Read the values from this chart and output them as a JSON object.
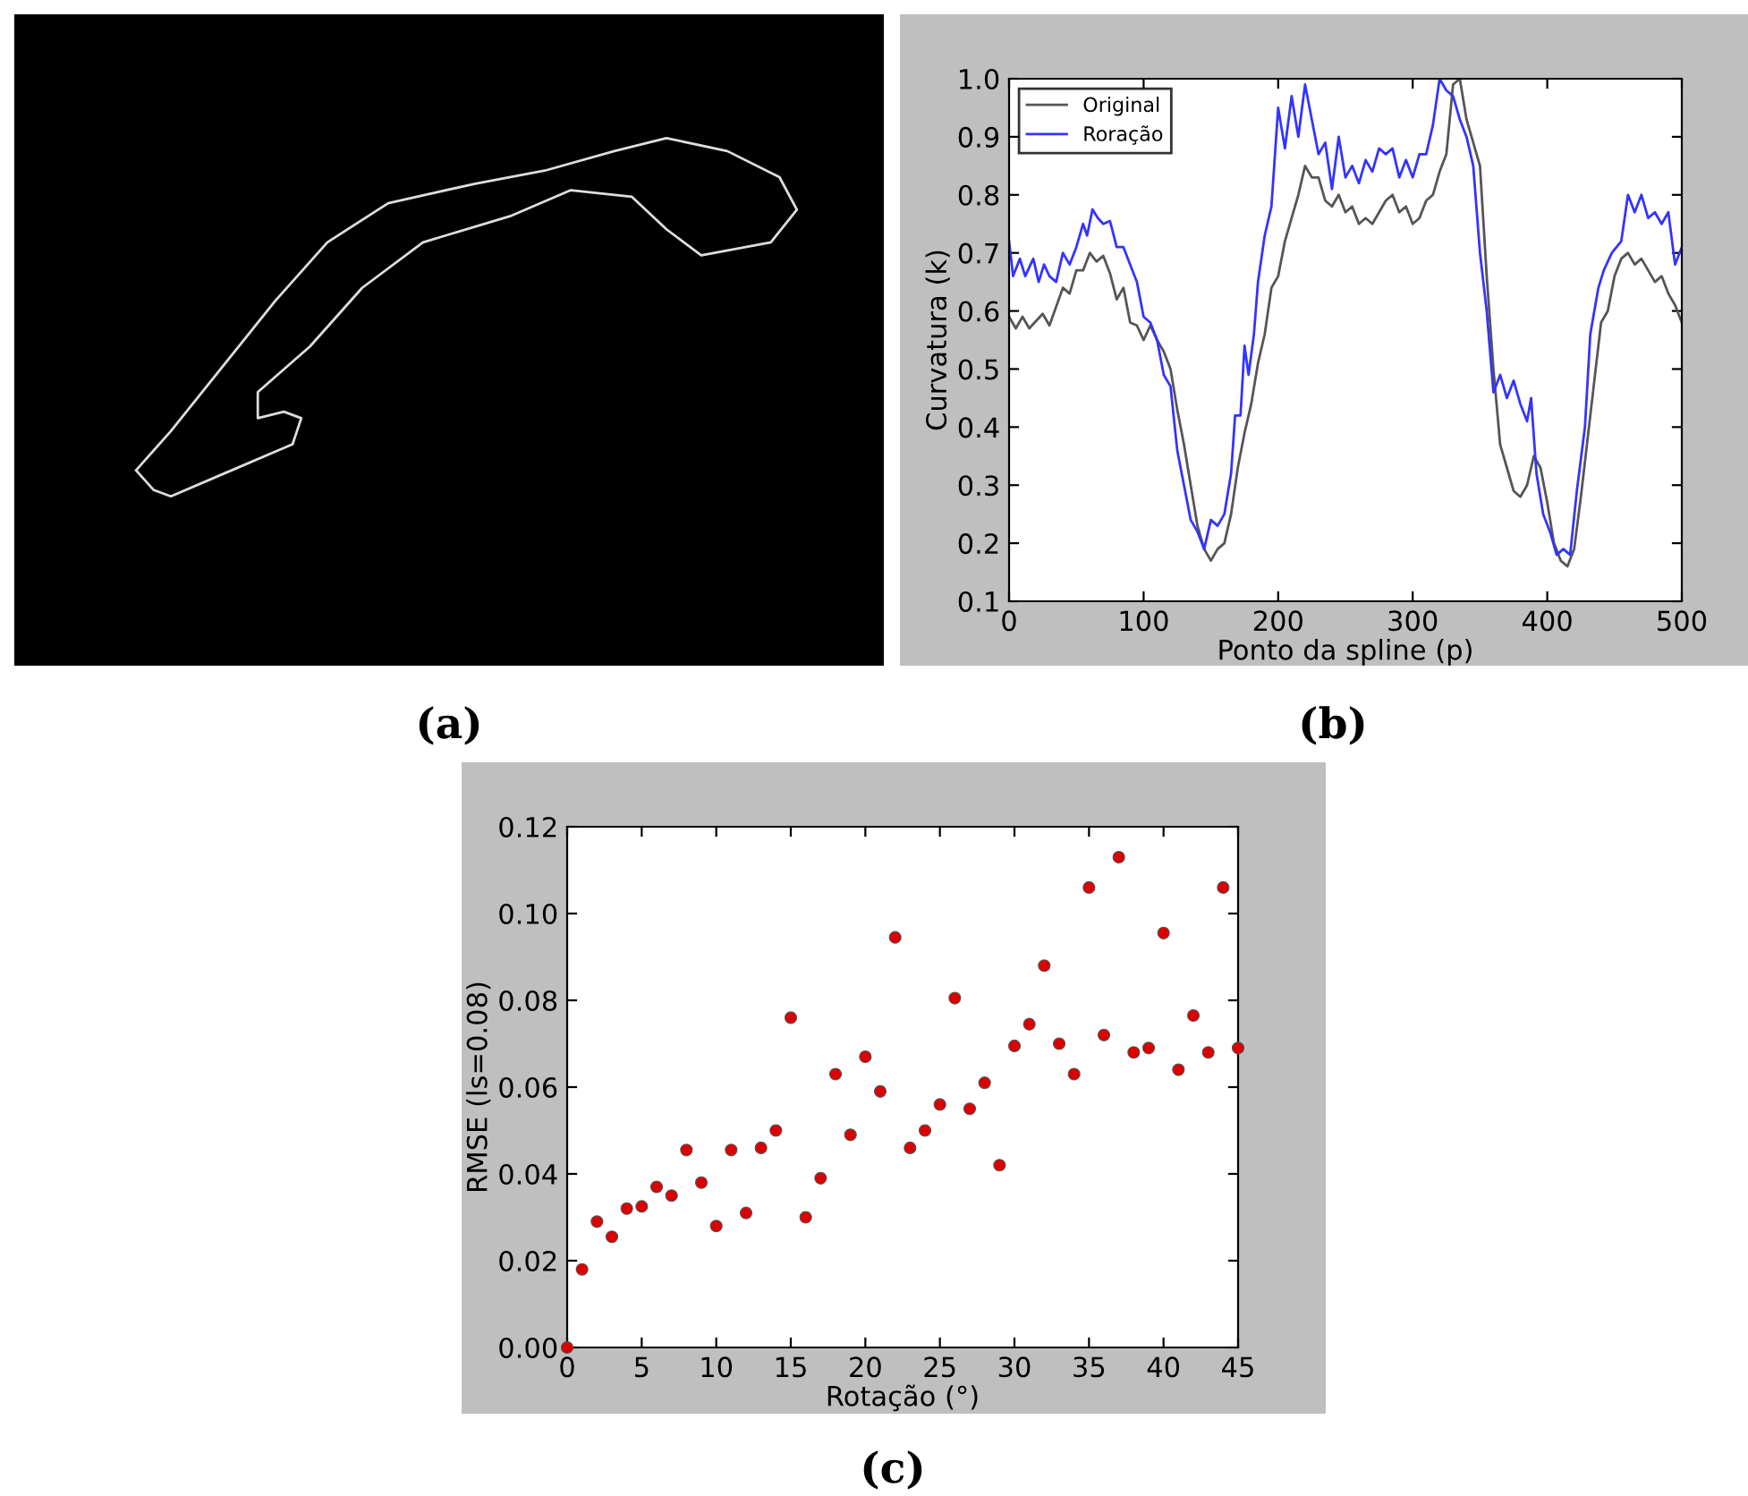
{
  "chart_data": [
    {
      "type": "other",
      "annotations": [
        "(a)"
      ]
    },
    {
      "type": "line",
      "xlabel": "Ponto da spline (p)",
      "ylabel": "Curvatura (k)",
      "annotations": [
        "(b)"
      ],
      "xlim": [
        0,
        500
      ],
      "ylim": [
        0.1,
        1.0
      ],
      "xticks": [
        0,
        100,
        200,
        300,
        400,
        500
      ],
      "yticks": [
        0.1,
        0.2,
        0.3,
        0.4,
        0.5,
        0.6,
        0.7,
        0.8,
        0.9,
        {
          "value": 1.0,
          "label": "1.0"
        }
      ],
      "grid": false,
      "legend": "top left",
      "marker": "none",
      "line_style": "solid",
      "series": [
        {
          "name": "Original",
          "color": "#555555",
          "x": [
            0,
            5,
            10,
            15,
            25,
            30,
            40,
            45,
            50,
            55,
            60,
            65,
            70,
            75,
            80,
            85,
            90,
            95,
            100,
            105,
            110,
            115,
            120,
            125,
            130,
            135,
            140,
            145,
            150,
            155,
            160,
            165,
            170,
            175,
            180,
            185,
            190,
            195,
            200,
            205,
            210,
            215,
            220,
            225,
            230,
            235,
            240,
            245,
            250,
            255,
            260,
            265,
            270,
            280,
            285,
            290,
            295,
            300,
            305,
            310,
            315,
            320,
            325,
            330,
            335,
            340,
            345,
            350,
            355,
            360,
            365,
            370,
            375,
            380,
            385,
            390,
            395,
            400,
            405,
            410,
            415,
            420,
            425,
            430,
            435,
            440,
            445,
            450,
            455,
            460,
            465,
            470,
            475,
            480,
            485,
            490,
            495,
            500
          ],
          "values": [
            0.59,
            0.57,
            0.59,
            0.57,
            0.595,
            0.575,
            0.64,
            0.63,
            0.67,
            0.67,
            0.7,
            0.685,
            0.695,
            0.665,
            0.62,
            0.64,
            0.58,
            0.575,
            0.55,
            0.575,
            0.55,
            0.53,
            0.5,
            0.43,
            0.37,
            0.3,
            0.23,
            0.19,
            0.17,
            0.19,
            0.2,
            0.25,
            0.33,
            0.39,
            0.44,
            0.51,
            0.56,
            0.64,
            0.66,
            0.72,
            0.76,
            0.8,
            0.85,
            0.83,
            0.83,
            0.79,
            0.78,
            0.8,
            0.77,
            0.78,
            0.75,
            0.76,
            0.75,
            0.79,
            0.8,
            0.77,
            0.78,
            0.75,
            0.76,
            0.79,
            0.8,
            0.84,
            0.87,
            0.99,
            1.0,
            0.93,
            0.89,
            0.85,
            0.66,
            0.5,
            0.37,
            0.33,
            0.29,
            0.28,
            0.3,
            0.35,
            0.33,
            0.27,
            0.2,
            0.17,
            0.16,
            0.19,
            0.28,
            0.38,
            0.48,
            0.58,
            0.6,
            0.66,
            0.69,
            0.7,
            0.68,
            0.69,
            0.67,
            0.65,
            0.66,
            0.63,
            0.61,
            0.58
          ]
        },
        {
          "name": "Roração",
          "color": "#3333ff",
          "x": [
            0,
            3,
            8,
            12,
            18,
            22,
            26,
            30,
            35,
            40,
            45,
            50,
            55,
            58,
            62,
            66,
            70,
            75,
            80,
            85,
            90,
            95,
            100,
            105,
            110,
            115,
            120,
            125,
            130,
            135,
            140,
            145,
            150,
            155,
            160,
            165,
            168,
            172,
            175,
            178,
            182,
            185,
            190,
            195,
            200,
            205,
            210,
            215,
            220,
            225,
            230,
            235,
            240,
            245,
            250,
            255,
            260,
            265,
            270,
            275,
            280,
            285,
            290,
            295,
            300,
            305,
            310,
            315,
            320,
            325,
            330,
            335,
            340,
            345,
            350,
            355,
            360,
            365,
            370,
            375,
            380,
            385,
            388,
            392,
            397,
            402,
            407,
            412,
            417,
            422,
            428,
            432,
            438,
            442,
            448,
            455,
            460,
            465,
            470,
            475,
            480,
            485,
            490,
            495,
            500
          ],
          "values": [
            0.72,
            0.66,
            0.69,
            0.66,
            0.69,
            0.65,
            0.68,
            0.66,
            0.65,
            0.7,
            0.68,
            0.71,
            0.75,
            0.73,
            0.775,
            0.76,
            0.75,
            0.755,
            0.71,
            0.71,
            0.68,
            0.65,
            0.59,
            0.58,
            0.55,
            0.49,
            0.47,
            0.36,
            0.3,
            0.24,
            0.22,
            0.19,
            0.24,
            0.23,
            0.25,
            0.32,
            0.42,
            0.42,
            0.54,
            0.49,
            0.56,
            0.65,
            0.73,
            0.78,
            0.95,
            0.88,
            0.97,
            0.9,
            0.99,
            0.93,
            0.87,
            0.89,
            0.81,
            0.9,
            0.83,
            0.85,
            0.82,
            0.86,
            0.84,
            0.88,
            0.87,
            0.88,
            0.83,
            0.86,
            0.83,
            0.87,
            0.87,
            0.92,
            1.0,
            0.98,
            0.97,
            0.93,
            0.9,
            0.85,
            0.7,
            0.6,
            0.46,
            0.49,
            0.45,
            0.48,
            0.44,
            0.41,
            0.45,
            0.32,
            0.25,
            0.22,
            0.18,
            0.19,
            0.18,
            0.29,
            0.4,
            0.56,
            0.64,
            0.67,
            0.7,
            0.72,
            0.8,
            0.77,
            0.8,
            0.76,
            0.77,
            0.75,
            0.77,
            0.68,
            0.71
          ]
        }
      ]
    },
    {
      "type": "scatter",
      "xlabel": "Rotação (°)",
      "ylabel": "RMSE (ls=0.08)",
      "annotations": [
        "(c)"
      ],
      "xlim": [
        0,
        45
      ],
      "ylim": [
        0.0,
        0.12
      ],
      "xticks": [
        0,
        5,
        10,
        15,
        20,
        25,
        30,
        35,
        40,
        45
      ],
      "yticks": [
        {
          "value": 0,
          "label": "0.00"
        },
        {
          "value": 0.02,
          "label": "0.02"
        },
        {
          "value": 0.04,
          "label": "0.04"
        },
        {
          "value": 0.06,
          "label": "0.06"
        },
        {
          "value": 0.08,
          "label": "0.08"
        },
        {
          "value": 0.1,
          "label": "0.10"
        },
        {
          "value": 0.12,
          "label": "0.12"
        }
      ],
      "grid": false,
      "marker": "circle",
      "series": [
        {
          "color": "#dd0000",
          "x": [
            0,
            1,
            2,
            3,
            4,
            5,
            6,
            7,
            8,
            9,
            10,
            11,
            12,
            13,
            14,
            15,
            16,
            17,
            18,
            19,
            20,
            21,
            22,
            23,
            24,
            25,
            26,
            27,
            28,
            29,
            30,
            31,
            32,
            33,
            34,
            35,
            36,
            37,
            38,
            39,
            40,
            41,
            42,
            43,
            44,
            45
          ],
          "values": [
            0,
            0.018,
            0.029,
            0.0255,
            0.032,
            0.0325,
            0.037,
            0.035,
            0.0455,
            0.038,
            0.028,
            0.0455,
            0.031,
            0.046,
            0.05,
            0.076,
            0.03,
            0.039,
            0.063,
            0.049,
            0.067,
            0.059,
            0.0945,
            0.046,
            0.05,
            0.056,
            0.0805,
            0.055,
            0.061,
            0.042,
            0.0695,
            0.0745,
            0.088,
            0.07,
            0.063,
            0.106,
            0.072,
            0.113,
            0.068,
            0.069,
            0.0955,
            0.064,
            0.0765,
            0.068,
            0.106,
            0.069
          ]
        }
      ]
    }
  ]
}
